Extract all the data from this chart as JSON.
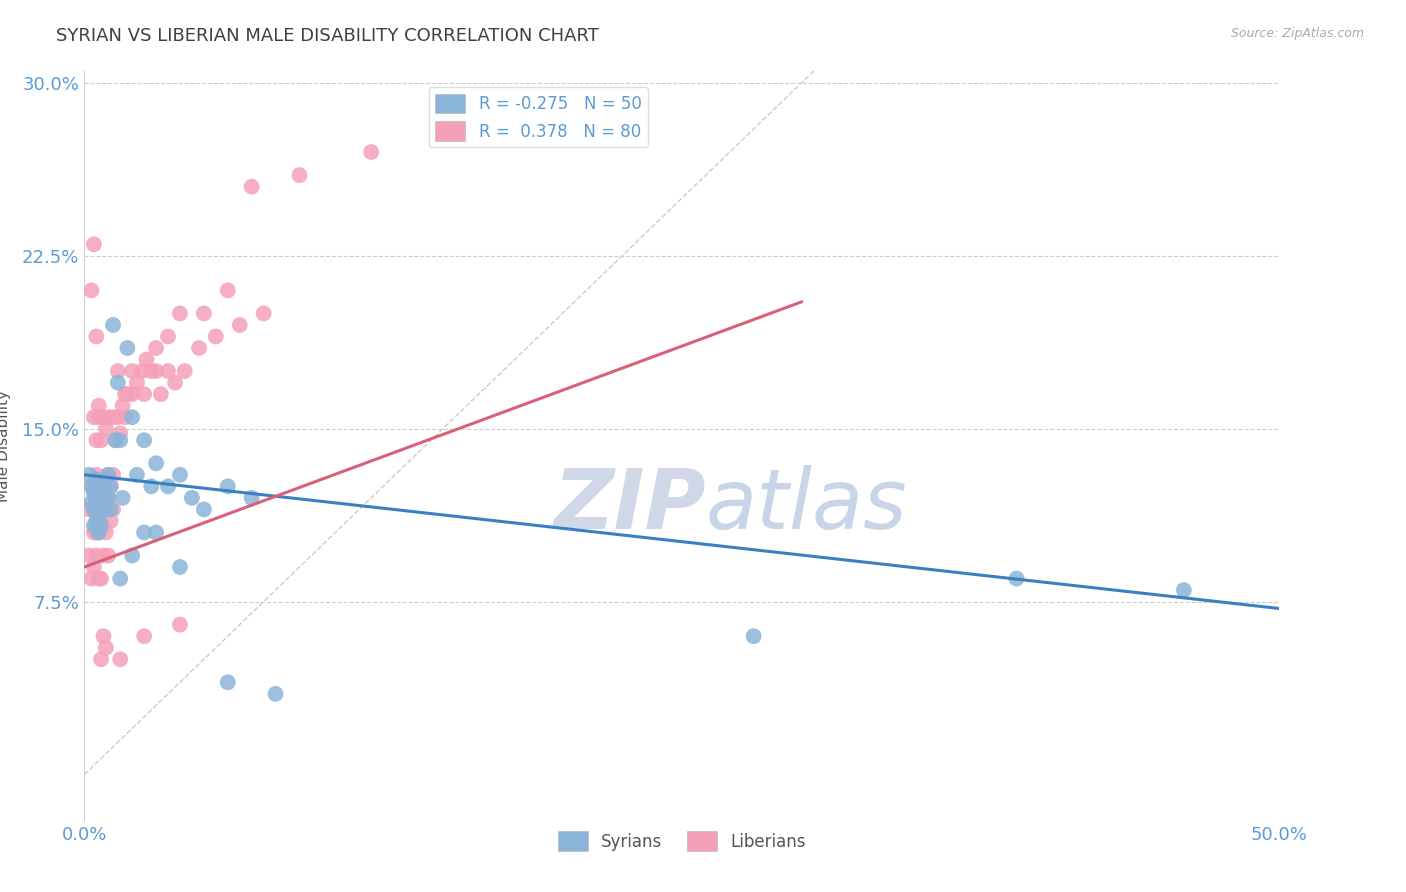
{
  "title": "SYRIAN VS LIBERIAN MALE DISABILITY CORRELATION CHART",
  "source_text": "Source: ZipAtlas.com",
  "ylabel": "Male Disability",
  "xlim": [
    0.0,
    0.5
  ],
  "ylim": [
    -0.02,
    0.305
  ],
  "ytick_positions": [
    0.075,
    0.15,
    0.225,
    0.3
  ],
  "ytick_labels": [
    "7.5%",
    "15.0%",
    "22.5%",
    "30.0%"
  ],
  "xtick_positions": [
    0.0,
    0.5
  ],
  "xtick_labels": [
    "0.0%",
    "50.0%"
  ],
  "watermark_zip": "ZIP",
  "watermark_atlas": "atlas",
  "legend_label_1": "R = -0.275   N = 50",
  "legend_label_2": "R =  0.378   N = 80",
  "legend_label_syrians": "Syrians",
  "legend_label_liberians": "Liberians",
  "syrian_color": "#8ab4d8",
  "liberian_color": "#f4a0b8",
  "syrian_line_color": "#3a7fc1",
  "liberian_line_color": "#d9607a",
  "ref_line_color": "#cccccc",
  "grid_color": "#cccccc",
  "background_color": "#ffffff",
  "title_color": "#404040",
  "tick_color": "#5b9bd5",
  "ylabel_color": "#555555",
  "source_color": "#aaaaaa",
  "watermark_zip_color": "#d0d8e8",
  "watermark_atlas_color": "#c8d4e8",
  "syrians_x": [
    0.002,
    0.003,
    0.003,
    0.004,
    0.004,
    0.004,
    0.005,
    0.005,
    0.005,
    0.006,
    0.006,
    0.006,
    0.007,
    0.007,
    0.007,
    0.008,
    0.008,
    0.009,
    0.009,
    0.01,
    0.01,
    0.011,
    0.011,
    0.012,
    0.013,
    0.014,
    0.015,
    0.016,
    0.018,
    0.02,
    0.022,
    0.025,
    0.028,
    0.03,
    0.035,
    0.04,
    0.045,
    0.05,
    0.06,
    0.07,
    0.015,
    0.02,
    0.025,
    0.03,
    0.04,
    0.06,
    0.08,
    0.28,
    0.39,
    0.46
  ],
  "syrians_y": [
    0.13,
    0.125,
    0.118,
    0.115,
    0.108,
    0.122,
    0.12,
    0.11,
    0.128,
    0.105,
    0.115,
    0.112,
    0.12,
    0.108,
    0.118,
    0.115,
    0.122,
    0.118,
    0.128,
    0.12,
    0.13,
    0.115,
    0.125,
    0.195,
    0.145,
    0.17,
    0.145,
    0.12,
    0.185,
    0.155,
    0.13,
    0.145,
    0.125,
    0.135,
    0.125,
    0.13,
    0.12,
    0.115,
    0.125,
    0.12,
    0.085,
    0.095,
    0.105,
    0.105,
    0.09,
    0.04,
    0.035,
    0.06,
    0.085,
    0.08
  ],
  "liberians_x": [
    0.002,
    0.002,
    0.003,
    0.003,
    0.004,
    0.004,
    0.004,
    0.005,
    0.005,
    0.005,
    0.005,
    0.006,
    0.006,
    0.006,
    0.006,
    0.007,
    0.007,
    0.007,
    0.008,
    0.008,
    0.008,
    0.009,
    0.009,
    0.01,
    0.01,
    0.01,
    0.011,
    0.011,
    0.012,
    0.012,
    0.013,
    0.014,
    0.015,
    0.016,
    0.017,
    0.018,
    0.02,
    0.022,
    0.024,
    0.026,
    0.028,
    0.03,
    0.032,
    0.035,
    0.038,
    0.042,
    0.048,
    0.055,
    0.065,
    0.075,
    0.004,
    0.005,
    0.006,
    0.007,
    0.008,
    0.009,
    0.01,
    0.012,
    0.014,
    0.017,
    0.02,
    0.025,
    0.03,
    0.035,
    0.04,
    0.05,
    0.06,
    0.07,
    0.09,
    0.12,
    0.003,
    0.004,
    0.005,
    0.006,
    0.007,
    0.008,
    0.009,
    0.015,
    0.025,
    0.04
  ],
  "liberians_y": [
    0.115,
    0.095,
    0.125,
    0.085,
    0.105,
    0.115,
    0.09,
    0.12,
    0.095,
    0.105,
    0.13,
    0.115,
    0.125,
    0.085,
    0.105,
    0.12,
    0.085,
    0.11,
    0.125,
    0.095,
    0.115,
    0.105,
    0.125,
    0.12,
    0.095,
    0.13,
    0.11,
    0.125,
    0.115,
    0.13,
    0.145,
    0.155,
    0.148,
    0.16,
    0.155,
    0.165,
    0.165,
    0.17,
    0.175,
    0.18,
    0.175,
    0.175,
    0.165,
    0.175,
    0.17,
    0.175,
    0.185,
    0.19,
    0.195,
    0.2,
    0.155,
    0.145,
    0.16,
    0.145,
    0.155,
    0.15,
    0.155,
    0.155,
    0.175,
    0.165,
    0.175,
    0.165,
    0.185,
    0.19,
    0.2,
    0.2,
    0.21,
    0.255,
    0.26,
    0.27,
    0.21,
    0.23,
    0.19,
    0.155,
    0.05,
    0.06,
    0.055,
    0.05,
    0.06,
    0.065
  ],
  "syrian_line_x": [
    0.0,
    0.5
  ],
  "syrian_line_y": [
    0.13,
    0.072
  ],
  "liberian_line_x": [
    0.0,
    0.3
  ],
  "liberian_line_y": [
    0.09,
    0.205
  ]
}
